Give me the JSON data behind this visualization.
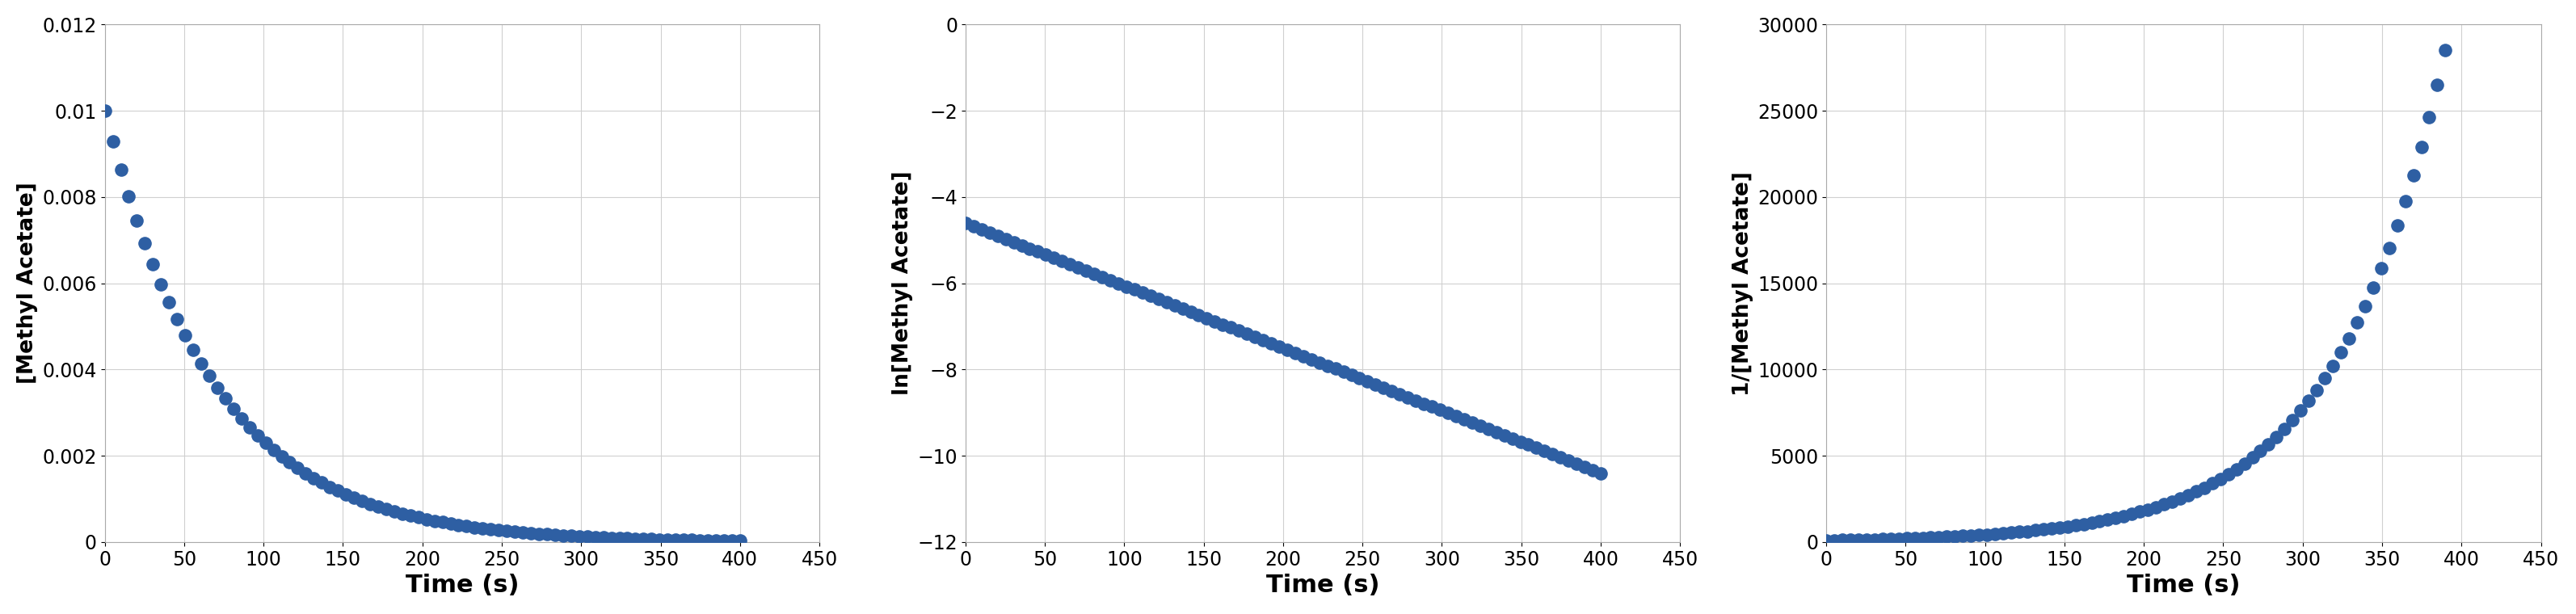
{
  "C0": 0.01,
  "k": 0.0145,
  "t_start": 0,
  "t_end": 400,
  "n_points": 80,
  "dot_color": "#2E5FA3",
  "dot_size": 120,
  "background_color": "#ffffff",
  "grid_color": "#d0d0d0",
  "plot1": {
    "ylabel": "[Methyl Acetate]",
    "xlabel": "Time (s)",
    "ylim": [
      0,
      0.012
    ],
    "xlim": [
      0,
      450
    ],
    "yticks": [
      0,
      0.002,
      0.004,
      0.006,
      0.008,
      0.01,
      0.012
    ],
    "xticks": [
      0,
      50,
      100,
      150,
      200,
      250,
      300,
      350,
      400,
      450
    ]
  },
  "plot2": {
    "ylabel": "ln[Methyl Acetate]",
    "xlabel": "Time (s)",
    "ylim": [
      -12,
      0
    ],
    "xlim": [
      0,
      450
    ],
    "yticks": [
      0,
      -2,
      -4,
      -6,
      -8,
      -10,
      -12
    ],
    "xticks": [
      0,
      50,
      100,
      150,
      200,
      250,
      300,
      350,
      400,
      450
    ]
  },
  "plot3": {
    "ylabel": "1/[Methyl Acetate]",
    "xlabel": "Time (s)",
    "ylim": [
      0,
      30000
    ],
    "xlim": [
      0,
      450
    ],
    "yticks": [
      0,
      5000,
      10000,
      15000,
      20000,
      25000,
      30000
    ],
    "xticks": [
      0,
      50,
      100,
      150,
      200,
      250,
      300,
      350,
      400,
      450
    ]
  },
  "xlabel_fontsize": 22,
  "ylabel_fontsize": 19,
  "tick_fontsize": 17,
  "label_fontweight": "bold"
}
